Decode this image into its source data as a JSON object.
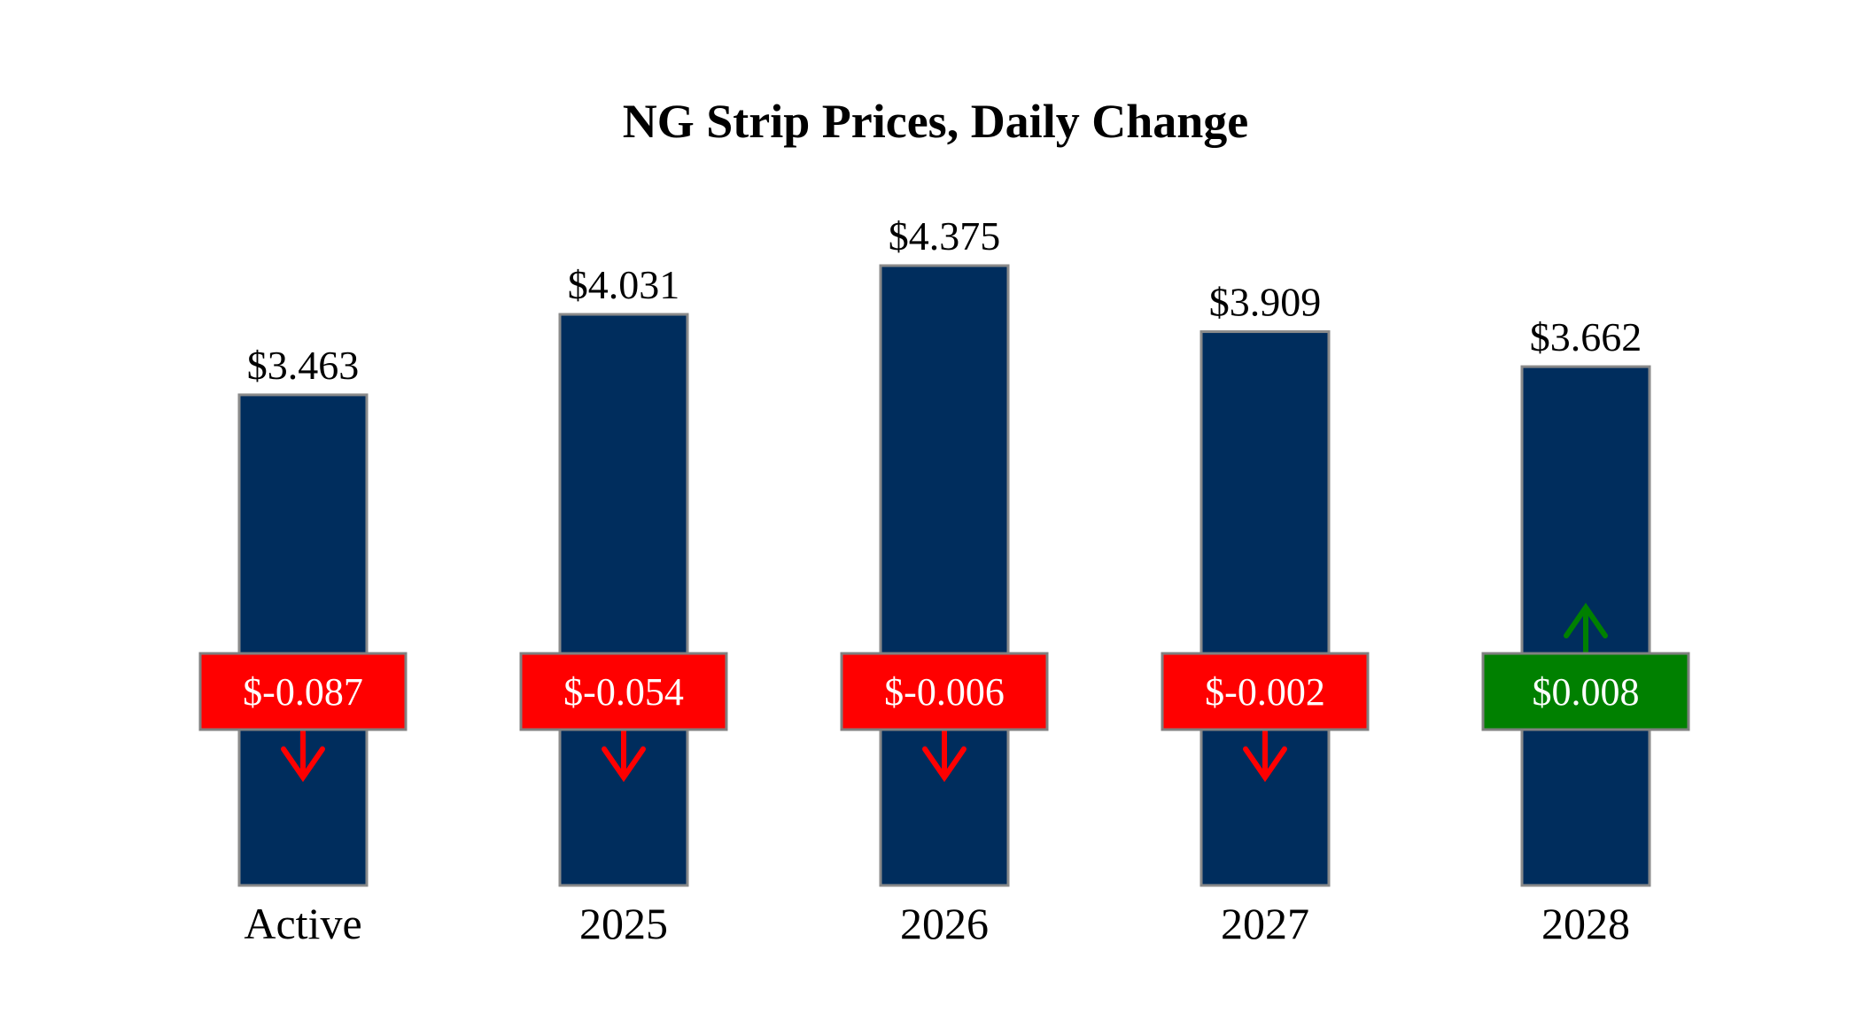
{
  "chart_data": {
    "type": "bar",
    "title": "NG Strip Prices, Daily Change",
    "xlabel": "",
    "ylabel": "",
    "ylim": [
      0,
      4.6
    ],
    "grid": false,
    "legend": "none",
    "categories": [
      "Active",
      "2025",
      "2026",
      "2027",
      "2028"
    ],
    "values": [
      3.463,
      4.031,
      4.375,
      3.909,
      3.662
    ],
    "value_labels": [
      "$3.463",
      "$4.031",
      "$4.375",
      "$3.909",
      "$3.662"
    ],
    "changes": [
      -0.087,
      -0.054,
      -0.006,
      -0.002,
      0.008
    ],
    "change_labels": [
      "$-0.087",
      "$-0.054",
      "$-0.006",
      "$-0.002",
      "$0.008"
    ],
    "change_directions": [
      "down",
      "down",
      "down",
      "down",
      "up"
    ],
    "colors": {
      "bar": "#002d5d",
      "bar_edge": "#8a8a8a",
      "negative": "#ff0000",
      "positive": "#008000",
      "box_edge": "#808080",
      "text": "#000000",
      "background": "#ffffff"
    }
  }
}
